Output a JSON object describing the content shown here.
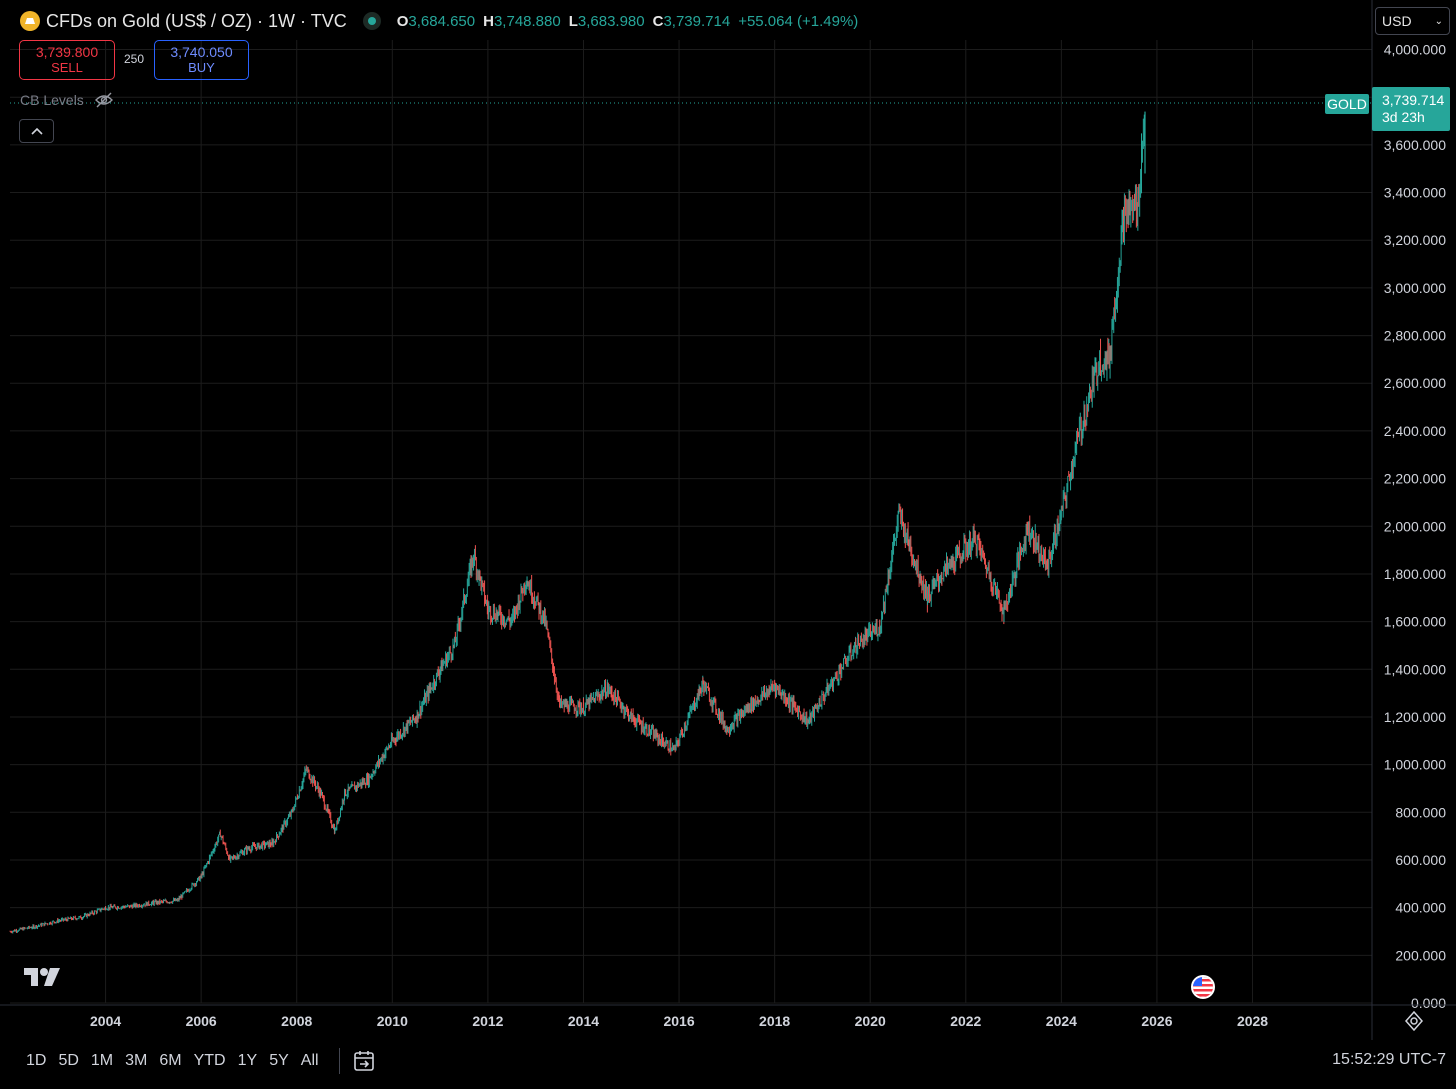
{
  "header": {
    "symbol_title": "CFDs on Gold (US$ / OZ) · 1W · TVC",
    "ohlc": [
      {
        "key": "O",
        "value": "3,684.650"
      },
      {
        "key": "H",
        "value": "3,748.880"
      },
      {
        "key": "L",
        "value": "3,683.980"
      },
      {
        "key": "C",
        "value": "3,739.714"
      }
    ],
    "change": "+55.064 (+1.49%)"
  },
  "trade": {
    "sell_price": "3,739.800",
    "sell_label": "SELL",
    "spread": "250",
    "buy_price": "3,740.050",
    "buy_label": "BUY"
  },
  "indicator": {
    "name": "CB Levels",
    "hidden_icon": "eye-off-icon"
  },
  "currency": {
    "selected": "USD"
  },
  "last_price": {
    "symbol": "GOLD",
    "value": "3,739.714",
    "countdown": "3d 23h"
  },
  "timeframes": [
    "1D",
    "5D",
    "1M",
    "3M",
    "6M",
    "YTD",
    "1Y",
    "5Y",
    "All"
  ],
  "clock": "15:52:29 UTC-7",
  "colors": {
    "up": "#26a69a",
    "down": "#ef5350",
    "grid": "#1c1c1c",
    "axis_text": "#d1d4dc",
    "background": "#000000"
  },
  "chart_data": {
    "type": "line",
    "interval": "1W",
    "xlabel": "",
    "ylabel": "",
    "x_ticks": [
      "2004",
      "2006",
      "2008",
      "2010",
      "2012",
      "2014",
      "2016",
      "2018",
      "2020",
      "2022",
      "2024",
      "2026",
      "2028"
    ],
    "y_ticks": [
      "0.000",
      "200.000",
      "400.000",
      "600.000",
      "800.000",
      "1,000.000",
      "1,200.000",
      "1,400.000",
      "1,600.000",
      "1,800.000",
      "2,000.000",
      "2,200.000",
      "2,400.000",
      "2,600.000",
      "2,800.000",
      "3,000.000",
      "3,200.000",
      "3,400.000",
      "3,600.000",
      "3,800.000",
      "4,000.000"
    ],
    "xlim": [
      2002.0,
      2030.5
    ],
    "ylim": [
      0,
      4040
    ],
    "series": [
      {
        "points": [
          [
            2002.0,
            300
          ],
          [
            2002.5,
            320
          ],
          [
            2003.0,
            345
          ],
          [
            2003.5,
            360
          ],
          [
            2004.0,
            400
          ],
          [
            2004.5,
            405
          ],
          [
            2005.0,
            420
          ],
          [
            2005.5,
            430
          ],
          [
            2006.0,
            530
          ],
          [
            2006.4,
            710
          ],
          [
            2006.6,
            600
          ],
          [
            2007.0,
            650
          ],
          [
            2007.5,
            670
          ],
          [
            2007.9,
            800
          ],
          [
            2008.2,
            980
          ],
          [
            2008.5,
            880
          ],
          [
            2008.8,
            720
          ],
          [
            2009.0,
            880
          ],
          [
            2009.5,
            940
          ],
          [
            2010.0,
            1100
          ],
          [
            2010.5,
            1200
          ],
          [
            2011.0,
            1400
          ],
          [
            2011.3,
            1500
          ],
          [
            2011.7,
            1880
          ],
          [
            2012.0,
            1650
          ],
          [
            2012.5,
            1600
          ],
          [
            2012.8,
            1780
          ],
          [
            2013.2,
            1600
          ],
          [
            2013.5,
            1250
          ],
          [
            2014.0,
            1240
          ],
          [
            2014.5,
            1320
          ],
          [
            2015.0,
            1200
          ],
          [
            2015.5,
            1120
          ],
          [
            2015.9,
            1060
          ],
          [
            2016.5,
            1340
          ],
          [
            2017.0,
            1150
          ],
          [
            2017.5,
            1250
          ],
          [
            2018.0,
            1330
          ],
          [
            2018.7,
            1180
          ],
          [
            2019.0,
            1280
          ],
          [
            2019.7,
            1500
          ],
          [
            2020.2,
            1580
          ],
          [
            2020.6,
            2050
          ],
          [
            2021.2,
            1700
          ],
          [
            2021.5,
            1800
          ],
          [
            2022.2,
            1950
          ],
          [
            2022.8,
            1640
          ],
          [
            2023.3,
            2000
          ],
          [
            2023.7,
            1830
          ],
          [
            2024.0,
            2050
          ],
          [
            2024.3,
            2330
          ],
          [
            2024.8,
            2700
          ],
          [
            2025.0,
            2700
          ],
          [
            2025.3,
            3300
          ],
          [
            2025.6,
            3350
          ],
          [
            2025.75,
            3739.714
          ]
        ]
      }
    ]
  }
}
